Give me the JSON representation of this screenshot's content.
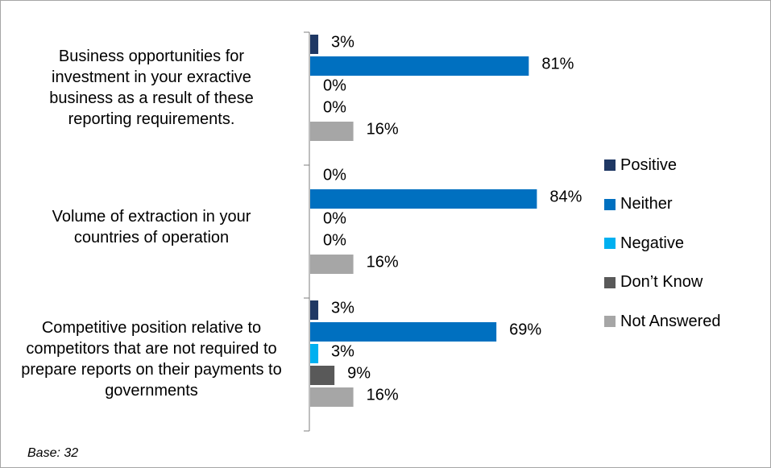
{
  "chart_data": {
    "type": "bar",
    "orientation": "horizontal",
    "categories": [
      "Business opportunities for investment in your exractive business as a result of these reporting requirements.",
      "Volume of extraction in your countries of operation",
      "Competitive position relative to competitors that are not required to prepare reports on their payments to governments"
    ],
    "series": [
      {
        "name": "Positive",
        "color": "#1f3864",
        "values": [
          3,
          0,
          3
        ]
      },
      {
        "name": "Neither",
        "color": "#0070c0",
        "values": [
          81,
          84,
          69
        ]
      },
      {
        "name": "Negative",
        "color": "#00b0f0",
        "values": [
          0,
          0,
          3
        ]
      },
      {
        "name": "Don’t Know",
        "color": "#595959",
        "values": [
          0,
          0,
          9
        ]
      },
      {
        "name": "Not Answered",
        "color": "#a6a6a6",
        "values": [
          16,
          16,
          16
        ]
      }
    ],
    "data_labels": [
      [
        "3%",
        "81%",
        "0%",
        "0%",
        "16%"
      ],
      [
        "0%",
        "84%",
        "0%",
        "0%",
        "16%"
      ],
      [
        "3%",
        "69%",
        "3%",
        "9%",
        "16%"
      ]
    ],
    "xlim": [
      0,
      100
    ],
    "legend_position": "right",
    "grid": false
  },
  "base_note": "Base: 32"
}
